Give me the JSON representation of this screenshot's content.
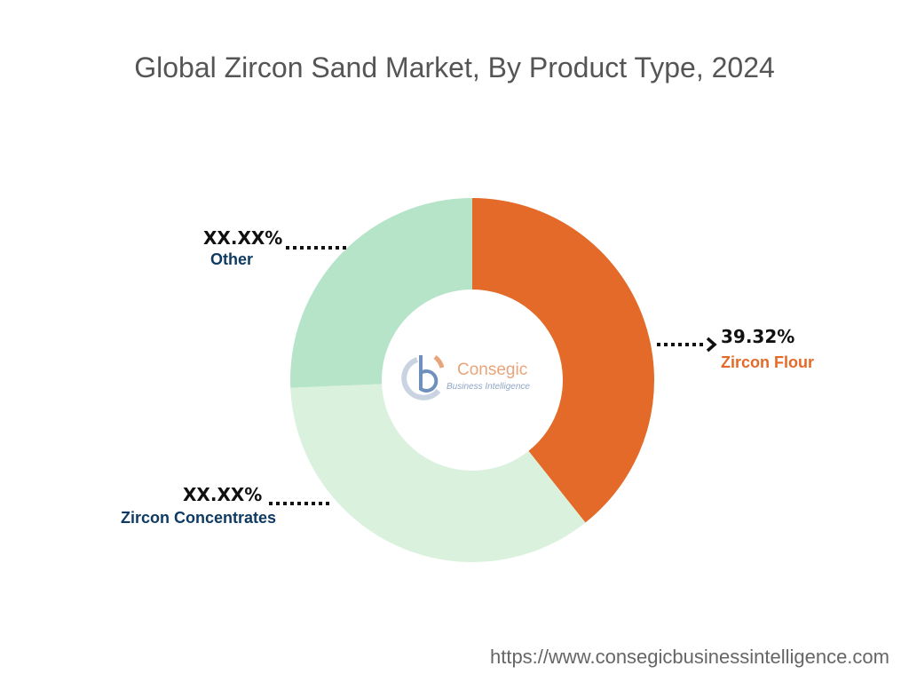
{
  "chart_data": {
    "type": "pie",
    "title": "Global Zircon Sand Market, By Product Type, 2024",
    "slices": [
      {
        "name": "Zircon Flour",
        "label": "39.32%",
        "value": 39.32,
        "color": "#e36a28",
        "name_color": "#e36a28"
      },
      {
        "name": "Zircon Concentrates",
        "label": "XX.XX%",
        "value": 35.0,
        "color": "#daf2dd",
        "name_color": "#0f3b63"
      },
      {
        "name": "Other",
        "label": "XX.XX%",
        "value": 25.68,
        "color": "#b6e4c8",
        "name_color": "#0f3b63"
      }
    ],
    "start_angle_deg": 0,
    "direction": "clockwise",
    "donut": true
  },
  "logo": {
    "name": "Consegic",
    "tagline": "Business Intelligence"
  },
  "footer": {
    "url": "https://www.consegicbusinessintelligence.com"
  }
}
